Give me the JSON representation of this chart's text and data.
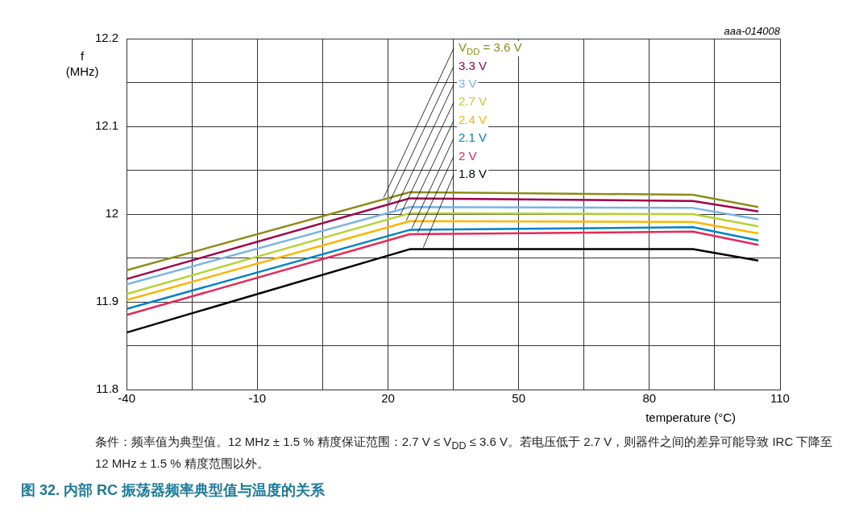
{
  "chart_data": {
    "type": "line",
    "title": "图 32.   内部 RC 振荡器频率典型值与温度的关系",
    "xlabel": "temperature (°C)",
    "ylabel": "f (MHz)",
    "x": [
      -40,
      25,
      90,
      105
    ],
    "xlim": [
      -40,
      110
    ],
    "xticks": [
      -40,
      {
        "value": -25,
        "label": null
      },
      -10,
      {
        "value": 5,
        "label": null
      },
      20,
      {
        "value": 35,
        "label": null
      },
      50,
      {
        "value": 65,
        "label": null
      },
      80,
      {
        "value": 95,
        "label": null
      },
      110
    ],
    "ylim": [
      11.8,
      12.2
    ],
    "yticks": [
      11.8,
      {
        "value": 11.85,
        "label": null
      },
      11.9,
      {
        "value": 11.95,
        "label": null
      },
      12,
      {
        "value": 12.05,
        "label": null
      },
      12.1,
      {
        "value": 12.15,
        "label": null
      },
      12.2
    ],
    "grid": true,
    "legend": false,
    "marker": "none",
    "line_style": "solid",
    "series": [
      {
        "name": "V$_{DD}$ = 3.6 V",
        "color": "#8c8c1a",
        "values": [
          11.936,
          12.025,
          12.022,
          12.008
        ]
      },
      {
        "name": "3.3 V",
        "color": "#a0004b",
        "values": [
          11.926,
          12.018,
          12.015,
          12.003
        ]
      },
      {
        "name": "3 V",
        "color": "#7ab4e6",
        "values": [
          11.92,
          12.008,
          12.007,
          11.994
        ]
      },
      {
        "name": "2.7 V",
        "color": "#b4d232",
        "values": [
          11.909,
          12.001,
          12.0,
          11.986
        ]
      },
      {
        "name": "2.4 V",
        "color": "#ffb400",
        "values": [
          11.902,
          11.992,
          11.991,
          11.978
        ]
      },
      {
        "name": "2.1 V",
        "color": "#0082c8",
        "values": [
          11.892,
          11.982,
          11.985,
          11.97
        ]
      },
      {
        "name": "2 V",
        "color": "#e6285a",
        "values": [
          11.885,
          11.977,
          11.98,
          11.965
        ]
      },
      {
        "name": "1.8 V",
        "color": "#000000",
        "values": [
          11.865,
          11.96,
          11.96,
          11.947
        ]
      }
    ],
    "annotations": [
      "aaa-014008",
      "条件：频率值为典型值。12 MHz ± 1.5 % 精度保证范围：2.7 V ≤ V$_{DD}$ ≤ 3.6 V。若电压低于 2.7 V，则器件之间的差异可能导致 IRC 下降至 12 MHz ± 1.5 % 精度范围以外。"
    ]
  }
}
